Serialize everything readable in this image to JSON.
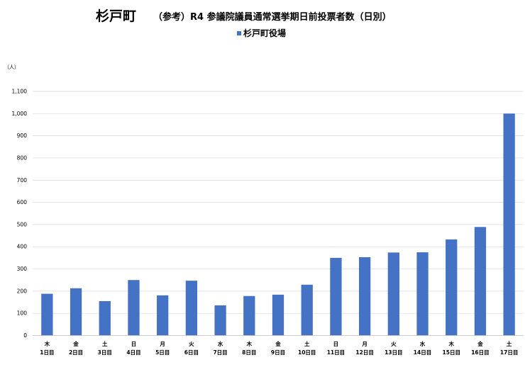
{
  "chart_data": {
    "type": "bar",
    "title_main": "杉戸町",
    "title_sub": "（参考）R4 参議院議員通常選挙期日前投票者数（日別）",
    "ylabel": "（人）",
    "ylim": [
      0,
      1100
    ],
    "yticks": [
      "0",
      "100",
      "200",
      "300",
      "400",
      "500",
      "600",
      "700",
      "800",
      "900",
      "1,000",
      "1,100"
    ],
    "grid": true,
    "legend_position": "top",
    "categories": [
      {
        "weekday": "木",
        "day": "1日目"
      },
      {
        "weekday": "金",
        "day": "2日目"
      },
      {
        "weekday": "土",
        "day": "3日目"
      },
      {
        "weekday": "日",
        "day": "4日目"
      },
      {
        "weekday": "月",
        "day": "5日目"
      },
      {
        "weekday": "火",
        "day": "6日目"
      },
      {
        "weekday": "水",
        "day": "7日目"
      },
      {
        "weekday": "木",
        "day": "8日目"
      },
      {
        "weekday": "金",
        "day": "9日目"
      },
      {
        "weekday": "土",
        "day": "10日目"
      },
      {
        "weekday": "日",
        "day": "11日目"
      },
      {
        "weekday": "月",
        "day": "12日目"
      },
      {
        "weekday": "火",
        "day": "13日目"
      },
      {
        "weekday": "水",
        "day": "14日目"
      },
      {
        "weekday": "木",
        "day": "15日目"
      },
      {
        "weekday": "金",
        "day": "16日目"
      },
      {
        "weekday": "土",
        "day": "17日目"
      }
    ],
    "series": [
      {
        "name": "杉戸町役場",
        "color": "#4472C4",
        "values": [
          188,
          213,
          155,
          250,
          181,
          247,
          136,
          178,
          184,
          229,
          350,
          353,
          374,
          375,
          433,
          489,
          1000
        ]
      }
    ]
  }
}
